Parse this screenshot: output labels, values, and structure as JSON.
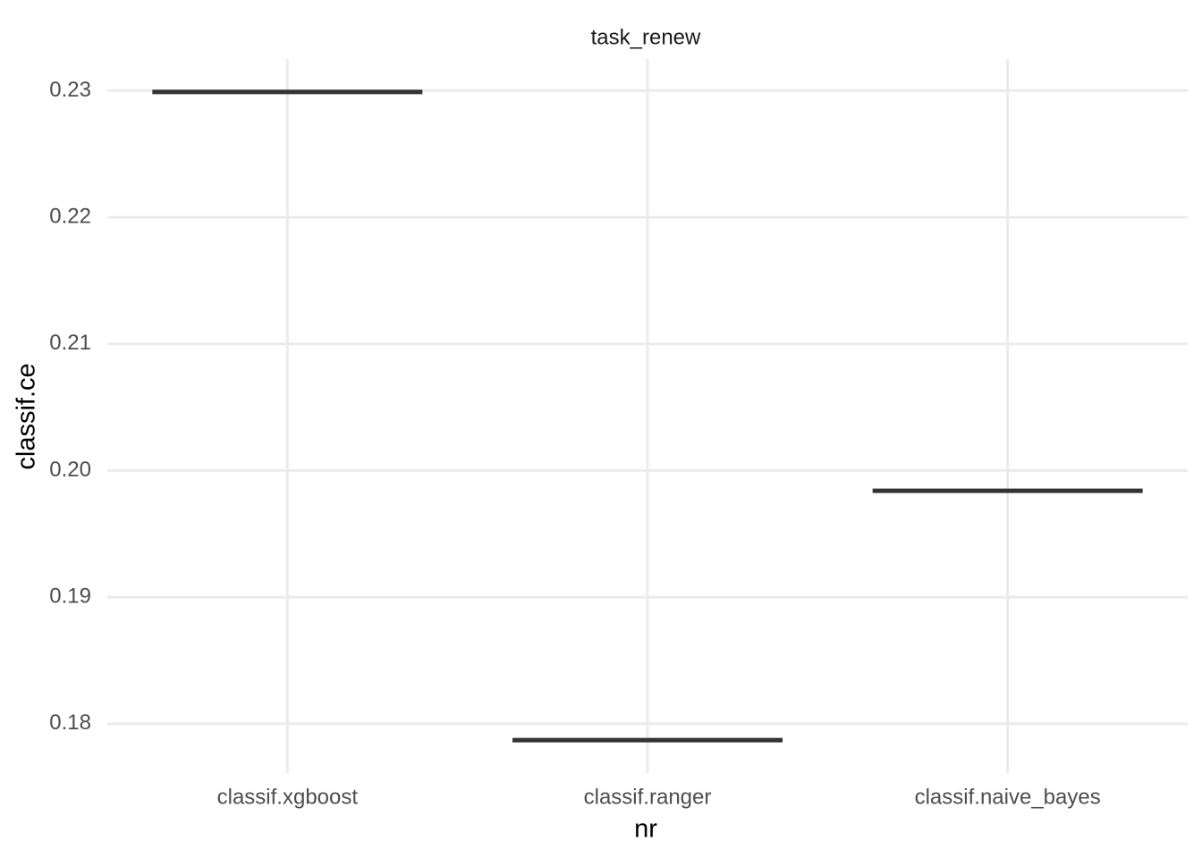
{
  "chart_data": {
    "type": "box",
    "title": "task_renew",
    "x_label": "nr",
    "y_label": "classif.ce",
    "categories": [
      "classif.xgboost",
      "classif.ranger",
      "classif.naive_bayes"
    ],
    "values": [
      0.2299,
      0.1787,
      0.1984
    ],
    "color": "#333333",
    "ylim": [
      0.1761,
      0.2325
    ],
    "yticks": [
      0.18,
      0.19,
      {
        "value": 0.2,
        "label": "0.20"
      },
      0.21,
      0.22,
      0.23
    ],
    "grid": true
  }
}
